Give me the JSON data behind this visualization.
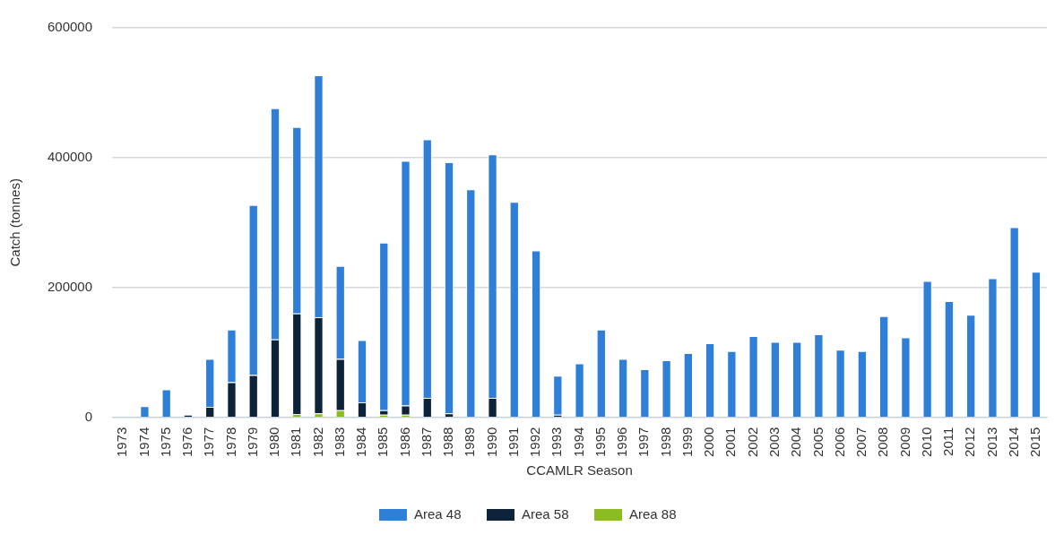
{
  "chart_data": {
    "type": "bar",
    "stacked": true,
    "xlabel": "CCAMLR Season",
    "ylabel": "Catch (tonnes)",
    "categories": [
      "1973",
      "1974",
      "1975",
      "1976",
      "1977",
      "1978",
      "1979",
      "1980",
      "1981",
      "1982",
      "1983",
      "1984",
      "1985",
      "1986",
      "1987",
      "1988",
      "1989",
      "1990",
      "1991",
      "1992",
      "1993",
      "1994",
      "1995",
      "1996",
      "1997",
      "1998",
      "1999",
      "2000",
      "2001",
      "2002",
      "2003",
      "2004",
      "2005",
      "2006",
      "2007",
      "2008",
      "2009",
      "2010",
      "2011",
      "2012",
      "2013",
      "2014",
      "2015"
    ],
    "series": [
      {
        "name": "Area 88",
        "color": "#8bbc21",
        "values": [
          0,
          0,
          0,
          0,
          0,
          0,
          0,
          0,
          5000,
          6000,
          11000,
          0,
          4000,
          4000,
          0,
          0,
          0,
          0,
          0,
          0,
          0,
          0,
          0,
          0,
          0,
          0,
          0,
          0,
          0,
          0,
          0,
          0,
          0,
          0,
          0,
          0,
          0,
          0,
          0,
          0,
          0,
          0,
          0
        ]
      },
      {
        "name": "Area 58",
        "color": "#0d233a",
        "values": [
          0,
          0,
          0,
          4000,
          16000,
          54000,
          65000,
          120000,
          155000,
          148000,
          79000,
          23000,
          7000,
          14000,
          30000,
          6000,
          0,
          30000,
          0,
          0,
          4000,
          0,
          0,
          0,
          0,
          0,
          0,
          0,
          0,
          0,
          0,
          0,
          0,
          0,
          0,
          0,
          0,
          0,
          0,
          0,
          0,
          0,
          0
        ]
      },
      {
        "name": "Area 48",
        "color": "#2f7ed8",
        "values": [
          0,
          17000,
          43000,
          0,
          74000,
          81000,
          262000,
          356000,
          287000,
          373000,
          143000,
          96000,
          258000,
          377000,
          398000,
          387000,
          351000,
          375000,
          332000,
          257000,
          60000,
          83000,
          135000,
          90000,
          74000,
          88000,
          99000,
          114000,
          102000,
          125000,
          116000,
          116000,
          128000,
          104000,
          102000,
          156000,
          123000,
          210000,
          179000,
          158000,
          214000,
          293000,
          224000
        ]
      }
    ],
    "ylim": [
      0,
      600000
    ],
    "yticks": [
      0,
      200000,
      400000,
      600000
    ],
    "grid": "y",
    "legend": "bottom"
  }
}
